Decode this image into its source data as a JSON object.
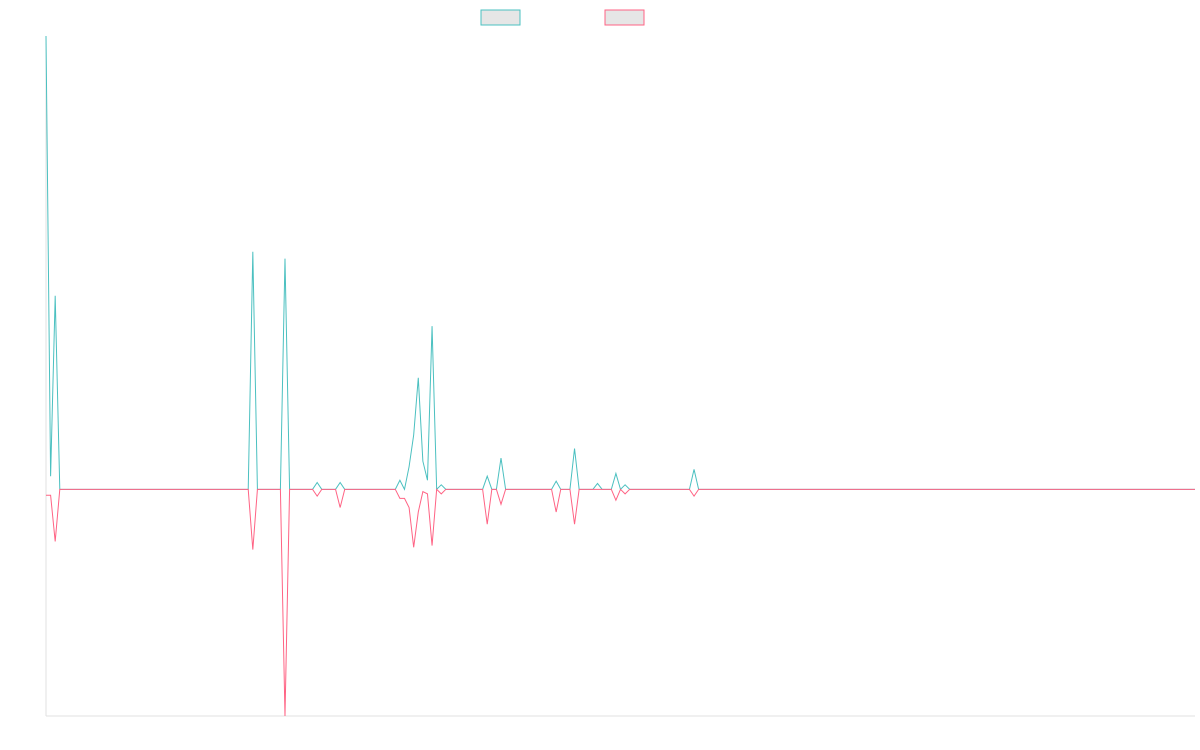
{
  "chart_data": {
    "type": "line",
    "ylim": [
      -50,
      100
    ],
    "series": [
      {
        "color": "#4bc0c0",
        "values": [
          100,
          2.9,
          42.7,
          0,
          0,
          0,
          0,
          0,
          0,
          0,
          0,
          0,
          0,
          0,
          0,
          0,
          0,
          0,
          0,
          0,
          0,
          0,
          0,
          0,
          0,
          0,
          0,
          0,
          0,
          0,
          0,
          0,
          0,
          0,
          0,
          0,
          0,
          0,
          0,
          0,
          0,
          0,
          0,
          0,
          0,
          52.4,
          0,
          0,
          0,
          0,
          0,
          0,
          50.9,
          0,
          0,
          0,
          0,
          0,
          0,
          1.5,
          0,
          0,
          0,
          0,
          1.5,
          0,
          0,
          0,
          0,
          0,
          0,
          0,
          0,
          0,
          0,
          0,
          0,
          2,
          0,
          5,
          12,
          24.6,
          6.2,
          2,
          36,
          0,
          1,
          0,
          0,
          0,
          0,
          0,
          0,
          0,
          0,
          0,
          2.9,
          0,
          0,
          6.9,
          0,
          0,
          0,
          0,
          0,
          0,
          0,
          0,
          0,
          0,
          0,
          1.8,
          0,
          0,
          0,
          9,
          0,
          0,
          0,
          0,
          1.3,
          0,
          0,
          0,
          3.5,
          0,
          1,
          0,
          0,
          0,
          0,
          0,
          0,
          0,
          0,
          0,
          0,
          0,
          0,
          0,
          0,
          4.4,
          0,
          0,
          0,
          0,
          0,
          0,
          0,
          0,
          0,
          0,
          0,
          0,
          0,
          0,
          0,
          0,
          0,
          0,
          0,
          0,
          0,
          0,
          0,
          0,
          0,
          0,
          0,
          0,
          0,
          0,
          0,
          0,
          0,
          0,
          0,
          0,
          0,
          0,
          0,
          0,
          0,
          0,
          0,
          0,
          0,
          0,
          0,
          0,
          0,
          0,
          0,
          0,
          0,
          0,
          0,
          0,
          0,
          0,
          0,
          0,
          0,
          0,
          0,
          0,
          0,
          0,
          0,
          0,
          0,
          0,
          0,
          0,
          0,
          0,
          0,
          0,
          0,
          0,
          0,
          0,
          0,
          0,
          0,
          0,
          0,
          0,
          0,
          0,
          0,
          0,
          0,
          0,
          0,
          0,
          0,
          0,
          0,
          0,
          0,
          0,
          0,
          0,
          0,
          0,
          0,
          0,
          0,
          0,
          0
        ]
      },
      {
        "color": "#ff6384",
        "values": [
          -1.3,
          -1.3,
          -11.5,
          0,
          0,
          0,
          0,
          0,
          0,
          0,
          0,
          0,
          0,
          0,
          0,
          0,
          0,
          0,
          0,
          0,
          0,
          0,
          0,
          0,
          0,
          0,
          0,
          0,
          0,
          0,
          0,
          0,
          0,
          0,
          0,
          0,
          0,
          0,
          0,
          0,
          0,
          0,
          0,
          0,
          0,
          -13.3,
          0,
          0,
          0,
          0,
          0,
          0,
          -50,
          0,
          0,
          0,
          0,
          0,
          0,
          -1.5,
          0,
          0,
          0,
          0,
          -4,
          0,
          0,
          0,
          0,
          0,
          0,
          0,
          0,
          0,
          0,
          0,
          0,
          -2,
          -2,
          -4,
          -12.8,
          -5,
          -0.5,
          -1,
          -12.4,
          0,
          -1,
          0,
          0,
          0,
          0,
          0,
          0,
          0,
          0,
          0,
          -7.7,
          0,
          0,
          -3.3,
          0,
          0,
          0,
          0,
          0,
          0,
          0,
          0,
          0,
          0,
          0,
          -5,
          0,
          0,
          0,
          -7.7,
          0,
          0,
          0,
          0,
          0,
          0,
          0,
          0,
          -2.4,
          0,
          -1,
          0,
          0,
          0,
          0,
          0,
          0,
          0,
          0,
          0,
          0,
          0,
          0,
          0,
          0,
          -1.5,
          0,
          0,
          0,
          0,
          0,
          0,
          0,
          0,
          0,
          0,
          0,
          0,
          0,
          0,
          0,
          0,
          0,
          0,
          0,
          0,
          0,
          0,
          0,
          0,
          0,
          0,
          0,
          0,
          0,
          0,
          0,
          0,
          0,
          0,
          0,
          0,
          0,
          0,
          0,
          0,
          0,
          0,
          0,
          0,
          0,
          0,
          0,
          0,
          0,
          0,
          0,
          0,
          0,
          0,
          0,
          0,
          0,
          0,
          0,
          0,
          0,
          0,
          0,
          0,
          0,
          0,
          0,
          0,
          0,
          0,
          0,
          0,
          0,
          0,
          0,
          0,
          0,
          0,
          0,
          0,
          0,
          0,
          0,
          0,
          0,
          0,
          0,
          0,
          0,
          0,
          0,
          0,
          0,
          0,
          0,
          0,
          0,
          0,
          0,
          0,
          0,
          0,
          0,
          0,
          0,
          0,
          0,
          0,
          0
        ]
      }
    ]
  }
}
